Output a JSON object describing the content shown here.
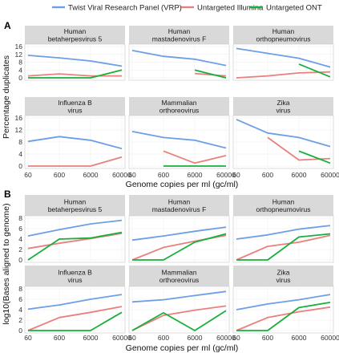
{
  "legend": {
    "items": [
      {
        "label": "Twist Viral Research Panel (VRP)",
        "color": "#6b9fe6"
      },
      {
        "label": "Untargeted Illumina",
        "color": "#e8807d"
      },
      {
        "label": "Untargeted ONT",
        "color": "#17b03c"
      }
    ]
  },
  "chart_data": [
    {
      "type": "line",
      "panel_label": "A",
      "ylabel": "Percentage duplicates",
      "xlabel": "Genome copies per ml (gc/ml)",
      "x_categories": [
        "60",
        "600",
        "6000",
        "60000"
      ],
      "yticks": [
        "0",
        "4",
        "8",
        "12",
        "16"
      ],
      "ylim": [
        0,
        16
      ],
      "facets": [
        {
          "title": "Human\nbetaherpesvirus 5",
          "series": [
            {
              "name": "Twist Viral Research Panel (VRP)",
              "values": [
                11.5,
                10.2,
                8.6,
                6.0
              ]
            },
            {
              "name": "Untargeted Illumina",
              "values": [
                1.0,
                2.0,
                1.0,
                1.0
              ]
            },
            {
              "name": "Untargeted ONT",
              "values": [
                0,
                0,
                0,
                4.0
              ]
            }
          ]
        },
        {
          "title": "Human\nmastadenovirus F",
          "series": [
            {
              "name": "Twist Viral Research Panel (VRP)",
              "values": [
                14.0,
                11.0,
                9.5,
                6.3
              ]
            },
            {
              "name": "Untargeted Illumina",
              "values": [
                null,
                null,
                2.2,
                1.0
              ]
            },
            {
              "name": "Untargeted ONT",
              "values": [
                null,
                null,
                4.0,
                0
              ]
            }
          ]
        },
        {
          "title": "Human\northopneumovirus",
          "series": [
            {
              "name": "Twist Viral Research Panel (VRP)",
              "values": [
                15.0,
                12.5,
                10.0,
                5.5
              ]
            },
            {
              "name": "Untargeted Illumina",
              "values": [
                0,
                1.0,
                2.5,
                3.0
              ]
            },
            {
              "name": "Untargeted ONT",
              "values": [
                null,
                null,
                7.0,
                0.5
              ]
            }
          ]
        },
        {
          "title": "Influenza B\nvirus",
          "series": [
            {
              "name": "Twist Viral Research Panel (VRP)",
              "values": [
                8.2,
                9.8,
                8.6,
                5.8
              ]
            },
            {
              "name": "Untargeted Illumina",
              "values": [
                0,
                0,
                0,
                3.0
              ]
            },
            {
              "name": "Untargeted ONT",
              "values": [
                null,
                null,
                null,
                null
              ]
            }
          ]
        },
        {
          "title": "Mammalian\northoreovirus",
          "series": [
            {
              "name": "Twist Viral Research Panel (VRP)",
              "values": [
                11.5,
                9.5,
                8.6,
                6.0
              ]
            },
            {
              "name": "Untargeted Illumina",
              "values": [
                null,
                5.0,
                1.0,
                3.5
              ]
            },
            {
              "name": "Untargeted ONT",
              "values": [
                null,
                0,
                0,
                0
              ]
            }
          ]
        },
        {
          "title": "Zika\nvirus",
          "series": [
            {
              "name": "Twist Viral Research Panel (VRP)",
              "values": [
                15.5,
                11.0,
                9.5,
                6.5
              ]
            },
            {
              "name": "Untargeted Illumina",
              "values": [
                null,
                9.5,
                2.0,
                2.5
              ]
            },
            {
              "name": "Untargeted ONT",
              "values": [
                null,
                null,
                5.0,
                1.0
              ]
            }
          ]
        }
      ]
    },
    {
      "type": "line",
      "panel_label": "B",
      "ylabel": "log10(Bases aligned to genome)",
      "xlabel": "Genome copies per ml (gc/ml)",
      "x_categories": [
        "60",
        "600",
        "6000",
        "60000"
      ],
      "yticks": [
        "0",
        "2",
        "4",
        "6",
        "8"
      ],
      "ylim": [
        0,
        8
      ],
      "facets": [
        {
          "title": "Human\nbetaherpesvirus 5",
          "series": [
            {
              "name": "Twist Viral Research Panel (VRP)",
              "values": [
                4.6,
                5.8,
                6.9,
                7.6
              ]
            },
            {
              "name": "Untargeted Illumina",
              "values": [
                2.2,
                3.2,
                4.1,
                5.1
              ]
            },
            {
              "name": "Untargeted ONT",
              "values": [
                0,
                4.0,
                4.2,
                5.3
              ]
            }
          ]
        },
        {
          "title": "Human\nmastadenovirus F",
          "series": [
            {
              "name": "Twist Viral Research Panel (VRP)",
              "values": [
                3.8,
                4.6,
                5.5,
                6.3
              ]
            },
            {
              "name": "Untargeted Illumina",
              "values": [
                0,
                2.4,
                3.6,
                4.7
              ]
            },
            {
              "name": "Untargeted ONT",
              "values": [
                0,
                0,
                3.4,
                5.0
              ]
            }
          ]
        },
        {
          "title": "Human\northopneumovirus",
          "series": [
            {
              "name": "Twist Viral Research Panel (VRP)",
              "values": [
                4.0,
                4.8,
                5.9,
                6.6
              ]
            },
            {
              "name": "Untargeted Illumina",
              "values": [
                0,
                2.6,
                3.4,
                4.7
              ]
            },
            {
              "name": "Untargeted ONT",
              "values": [
                0,
                0,
                4.4,
                5.0
              ]
            }
          ]
        },
        {
          "title": "Influenza B\nvirus",
          "series": [
            {
              "name": "Twist Viral Research Panel (VRP)",
              "values": [
                4.1,
                4.9,
                6.0,
                6.9
              ]
            },
            {
              "name": "Untargeted Illumina",
              "values": [
                0,
                2.5,
                3.5,
                4.6
              ]
            },
            {
              "name": "Untargeted ONT",
              "values": [
                0,
                0,
                0,
                3.5
              ]
            }
          ]
        },
        {
          "title": "Mammalian\northoreovirus",
          "series": [
            {
              "name": "Twist Viral Research Panel (VRP)",
              "values": [
                5.5,
                5.9,
                6.7,
                7.5
              ]
            },
            {
              "name": "Untargeted Illumina",
              "values": [
                0,
                2.9,
                3.9,
                4.7
              ]
            },
            {
              "name": "Untargeted ONT",
              "values": [
                0,
                3.4,
                0,
                3.8
              ]
            }
          ]
        },
        {
          "title": "Zika\nvirus",
          "series": [
            {
              "name": "Twist Viral Research Panel (VRP)",
              "values": [
                4.0,
                5.1,
                5.9,
                6.9
              ]
            },
            {
              "name": "Untargeted Illumina",
              "values": [
                0,
                2.5,
                3.6,
                4.5
              ]
            },
            {
              "name": "Untargeted ONT",
              "values": [
                0,
                0,
                4.4,
                5.4
              ]
            }
          ]
        }
      ]
    }
  ]
}
